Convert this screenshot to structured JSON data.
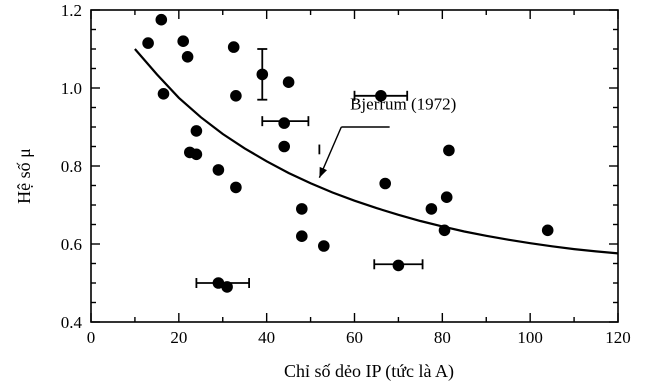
{
  "chart_data": {
    "type": "scatter",
    "title": "",
    "xlabel": "Chỉ số dẻo IP (tức là A)",
    "ylabel": "Hệ số μ",
    "xlim": [
      0,
      120
    ],
    "ylim": [
      0.4,
      1.2
    ],
    "x_ticks": [
      "0",
      "20",
      "40",
      "60",
      "80",
      "100",
      "120"
    ],
    "y_ticks": [
      "0.4",
      "0.6",
      "0.8",
      "1.0",
      "1.2"
    ],
    "grid": false,
    "colors": {
      "points": "#000000",
      "curve": "#000000",
      "axes": "#000000",
      "background": "#ffffff"
    },
    "points": [
      {
        "x": 13,
        "y": 1.115
      },
      {
        "x": 16,
        "y": 1.175
      },
      {
        "x": 16.5,
        "y": 0.985
      },
      {
        "x": 21,
        "y": 1.12
      },
      {
        "x": 22,
        "y": 1.08
      },
      {
        "x": 22.5,
        "y": 0.835
      },
      {
        "x": 24,
        "y": 0.83
      },
      {
        "x": 24,
        "y": 0.89
      },
      {
        "x": 29,
        "y": 0.79
      },
      {
        "x": 32.5,
        "y": 1.105
      },
      {
        "x": 33,
        "y": 0.98
      },
      {
        "x": 33,
        "y": 0.745
      },
      {
        "x": 29,
        "y": 0.5
      },
      {
        "x": 31,
        "y": 0.49
      },
      {
        "x": 39,
        "y": 1.035
      },
      {
        "x": 44,
        "y": 0.91
      },
      {
        "x": 44,
        "y": 0.85
      },
      {
        "x": 45,
        "y": 1.015
      },
      {
        "x": 48,
        "y": 0.69
      },
      {
        "x": 48,
        "y": 0.62
      },
      {
        "x": 53,
        "y": 0.595
      },
      {
        "x": 66,
        "y": 0.98
      },
      {
        "x": 67,
        "y": 0.755
      },
      {
        "x": 70,
        "y": 0.545
      },
      {
        "x": 77.5,
        "y": 0.69
      },
      {
        "x": 80.5,
        "y": 0.635
      },
      {
        "x": 81,
        "y": 0.72
      },
      {
        "x": 81.5,
        "y": 0.84
      },
      {
        "x": 104,
        "y": 0.635
      }
    ],
    "error_bars": [
      {
        "orientation": "vertical",
        "x": 39,
        "y": 1.035,
        "low": 0.97,
        "high": 1.1
      },
      {
        "orientation": "horizontal",
        "y": 0.915,
        "low": 39,
        "high": 49.5
      },
      {
        "orientation": "horizontal",
        "y": 0.98,
        "low": 60,
        "high": 72
      },
      {
        "orientation": "horizontal",
        "y": 0.5,
        "low": 24,
        "high": 36
      },
      {
        "orientation": "horizontal",
        "y": 0.548,
        "low": 64.5,
        "high": 75.5
      },
      {
        "orientation": "vertical",
        "x": 52,
        "y": 0.84,
        "low": 0.83,
        "high": 0.855
      }
    ],
    "curve": {
      "name": "Bjerrum (1972)",
      "x": [
        10,
        15,
        20,
        25,
        30,
        35,
        40,
        45,
        50,
        55,
        60,
        65,
        70,
        75,
        80,
        85,
        90,
        95,
        100,
        105,
        110,
        115,
        120
      ],
      "y": [
        1.1,
        1.035,
        0.975,
        0.925,
        0.882,
        0.845,
        0.812,
        0.782,
        0.756,
        0.732,
        0.711,
        0.692,
        0.675,
        0.659,
        0.645,
        0.632,
        0.621,
        0.611,
        0.602,
        0.594,
        0.587,
        0.581,
        0.576
      ]
    },
    "annotation": {
      "text": "Bjerrum (1972)",
      "text_x": 59,
      "text_y": 0.945,
      "line_from": [
        68,
        0.9
      ],
      "line_to": [
        57,
        0.9
      ],
      "arrow_to": [
        52,
        0.77
      ]
    }
  }
}
